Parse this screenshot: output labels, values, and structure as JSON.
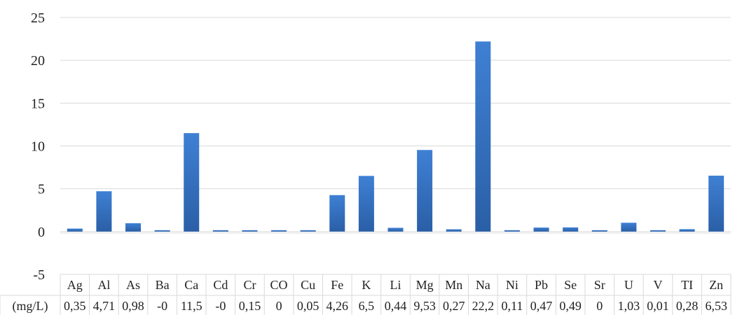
{
  "chart_data": {
    "type": "bar",
    "categories": [
      "Ag",
      "Al",
      "As",
      "Ba",
      "Ca",
      "Cd",
      "Cr",
      "CO",
      "Cu",
      "Fe",
      "K",
      "Li",
      "Mg",
      "Mn",
      "Na",
      "Ni",
      "Pb",
      "Se",
      "Sr",
      "U",
      "V",
      "TI",
      "Zn"
    ],
    "series": [
      {
        "name": "(mg/L)",
        "values": [
          0.35,
          4.71,
          0.98,
          -0.01,
          11.5,
          -0.01,
          0.15,
          0,
          0.05,
          4.26,
          6.5,
          0.44,
          9.53,
          0.27,
          22.2,
          0.11,
          0.47,
          0.49,
          0,
          1.03,
          0.01,
          0.28,
          6.53
        ]
      }
    ],
    "value_labels": [
      "0,35",
      "4,71",
      "0,98",
      "-0",
      "11,5",
      "-0",
      "0,15",
      "0",
      "0,05",
      "4,26",
      "6,5",
      "0,44",
      "9,53",
      "0,27",
      "22,2",
      "0,11",
      "0,47",
      "0,49",
      "0",
      "1,03",
      "0,01",
      "0,28",
      "6,53"
    ],
    "title": "",
    "xlabel": "",
    "ylabel": "",
    "ylim": [
      -5,
      25
    ],
    "yticks": [
      "-5",
      "0",
      "5",
      "10",
      "15",
      "20",
      "25"
    ],
    "grid": true,
    "legend": "data-table",
    "bar_color": "#3b78c9",
    "gridline_color": "#d9d9d9"
  }
}
